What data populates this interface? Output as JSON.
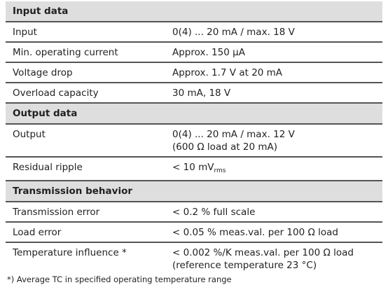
{
  "sections": [
    {
      "title": "Input data",
      "rows": [
        {
          "label": "Input",
          "value": [
            "0(4) ... 20 mA / max. 18 V"
          ]
        },
        {
          "label": "Min. operating current",
          "value": [
            "Approx. 150 µA"
          ]
        },
        {
          "label": "Voltage drop",
          "value": [
            "Approx. 1.7 V at 20 mA"
          ]
        },
        {
          "label": "Overload capacity",
          "value": [
            "30 mA, 18 V"
          ]
        }
      ]
    },
    {
      "title": "Output data",
      "rows": [
        {
          "label": "Output",
          "value": [
            "0(4) ... 20 mA / max. 12 V",
            "(600 Ω load at 20 mA)"
          ]
        },
        {
          "label": "Residual ripple",
          "value": [
            "< 10 mV"
          ],
          "value_sub": "rms"
        }
      ]
    },
    {
      "title": "Transmission behavior",
      "rows": [
        {
          "label": "Transmission error",
          "value": [
            "< 0.2 % full scale"
          ]
        },
        {
          "label": "Load error",
          "value": [
            "< 0.05 % meas.val. per 100 Ω load"
          ]
        },
        {
          "label": "Temperature influence *",
          "value": [
            "< 0.002 %/K meas.val. per 100 Ω load",
            "(reference temperature 23 °C)"
          ]
        }
      ]
    }
  ],
  "footnote": "*) Average TC in specified operating temperature range"
}
